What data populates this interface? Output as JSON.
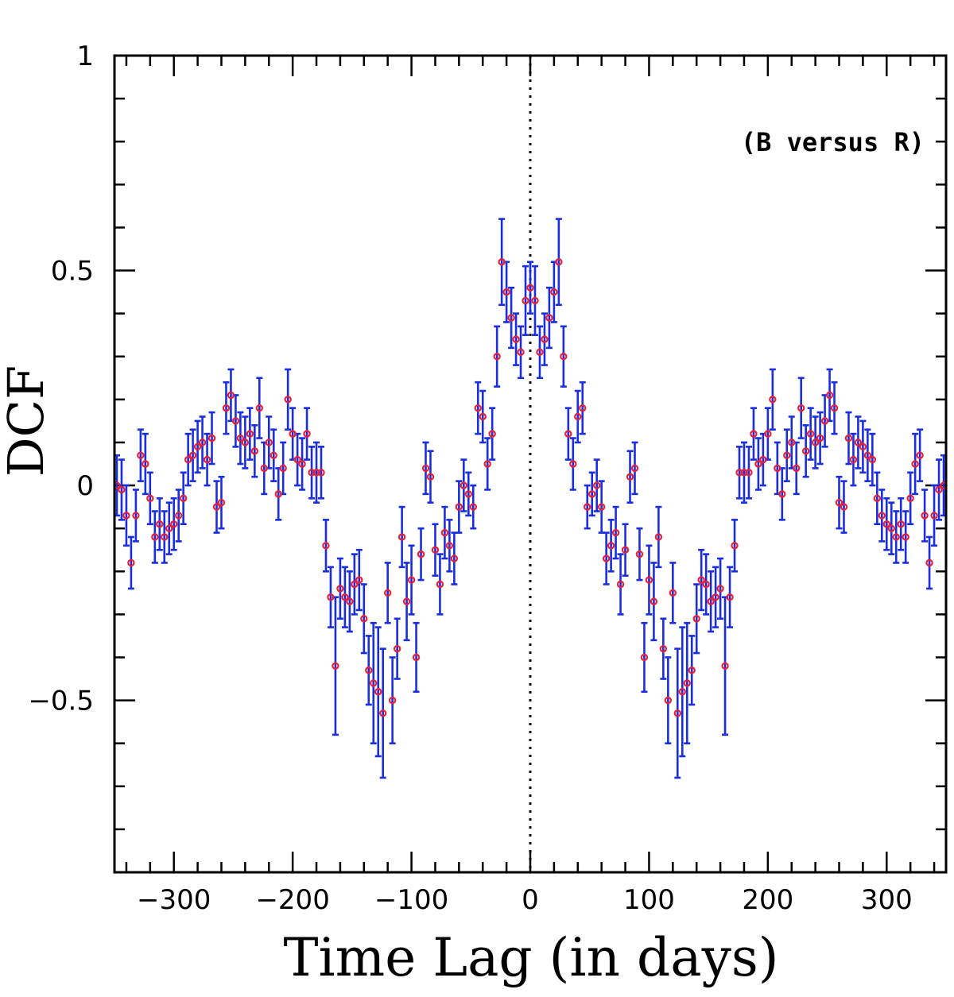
{
  "chart_data": {
    "type": "scatter",
    "xlabel": "Time Lag (in days)",
    "ylabel": "DCF",
    "annotation": "(B versus R)",
    "xlim": [
      -350,
      350
    ],
    "ylim": [
      -0.9,
      1.0
    ],
    "xticks": [
      -300,
      -200,
      -100,
      0,
      100,
      200,
      300
    ],
    "xtick_labels": [
      "−300",
      "−200",
      "−100",
      "0",
      "100",
      "200",
      "300"
    ],
    "yticks": [
      -0.5,
      0,
      0.5,
      1
    ],
    "ytick_labels": [
      "−0.5",
      "0",
      "0.5",
      "1"
    ],
    "reference_line_x": 0,
    "marker_color": "#e8203a",
    "errorbar_color": "#1a2ee0",
    "points": [
      [
        -348,
        0.0,
        0.07
      ],
      [
        -344,
        -0.01,
        0.07
      ],
      [
        -340,
        -0.07,
        0.07
      ],
      [
        -336,
        -0.18,
        0.06
      ],
      [
        -332,
        -0.07,
        0.06
      ],
      [
        -328,
        0.07,
        0.06
      ],
      [
        -324,
        0.05,
        0.07
      ],
      [
        -320,
        -0.03,
        0.06
      ],
      [
        -316,
        -0.12,
        0.06
      ],
      [
        -312,
        -0.09,
        0.06
      ],
      [
        -308,
        -0.12,
        0.06
      ],
      [
        -304,
        -0.1,
        0.06
      ],
      [
        -300,
        -0.09,
        0.06
      ],
      [
        -296,
        -0.07,
        0.06
      ],
      [
        -292,
        -0.03,
        0.06
      ],
      [
        -288,
        0.06,
        0.06
      ],
      [
        -284,
        0.07,
        0.06
      ],
      [
        -280,
        0.09,
        0.06
      ],
      [
        -276,
        0.1,
        0.06
      ],
      [
        -272,
        0.06,
        0.06
      ],
      [
        -268,
        0.11,
        0.06
      ],
      [
        -264,
        -0.05,
        0.06
      ],
      [
        -260,
        -0.04,
        0.06
      ],
      [
        -256,
        0.18,
        0.06
      ],
      [
        -252,
        0.21,
        0.06
      ],
      [
        -248,
        0.15,
        0.06
      ],
      [
        -244,
        0.11,
        0.06
      ],
      [
        -240,
        0.1,
        0.06
      ],
      [
        -236,
        0.12,
        0.06
      ],
      [
        -232,
        0.08,
        0.06
      ],
      [
        -228,
        0.18,
        0.07
      ],
      [
        -224,
        0.04,
        0.06
      ],
      [
        -220,
        0.1,
        0.06
      ],
      [
        -216,
        0.07,
        0.06
      ],
      [
        -212,
        -0.02,
        0.06
      ],
      [
        -208,
        0.04,
        0.06
      ],
      [
        -204,
        0.2,
        0.07
      ],
      [
        -200,
        0.12,
        0.06
      ],
      [
        -196,
        0.06,
        0.06
      ],
      [
        -192,
        0.05,
        0.06
      ],
      [
        -188,
        0.12,
        0.06
      ],
      [
        -184,
        0.03,
        0.06
      ],
      [
        -180,
        0.03,
        0.07
      ],
      [
        -176,
        0.03,
        0.06
      ],
      [
        -172,
        -0.14,
        0.06
      ],
      [
        -168,
        -0.26,
        0.07
      ],
      [
        -164,
        -0.42,
        0.16
      ],
      [
        -160,
        -0.24,
        0.07
      ],
      [
        -156,
        -0.26,
        0.07
      ],
      [
        -152,
        -0.27,
        0.07
      ],
      [
        -148,
        -0.23,
        0.07
      ],
      [
        -144,
        -0.22,
        0.07
      ],
      [
        -140,
        -0.31,
        0.08
      ],
      [
        -136,
        -0.43,
        0.08
      ],
      [
        -132,
        -0.46,
        0.14
      ],
      [
        -128,
        -0.48,
        0.15
      ],
      [
        -124,
        -0.53,
        0.15
      ],
      [
        -120,
        -0.25,
        0.07
      ],
      [
        -116,
        -0.5,
        0.1
      ],
      [
        -112,
        -0.38,
        0.07
      ],
      [
        -108,
        -0.12,
        0.07
      ],
      [
        -104,
        -0.27,
        0.09
      ],
      [
        -100,
        -0.22,
        0.08
      ],
      [
        -96,
        -0.4,
        0.08
      ],
      [
        -92,
        -0.16,
        0.06
      ],
      [
        -88,
        0.04,
        0.06
      ],
      [
        -84,
        0.02,
        0.06
      ],
      [
        -80,
        -0.15,
        0.06
      ],
      [
        -76,
        -0.23,
        0.07
      ],
      [
        -72,
        -0.11,
        0.06
      ],
      [
        -68,
        -0.14,
        0.06
      ],
      [
        -64,
        -0.17,
        0.06
      ],
      [
        -60,
        -0.05,
        0.06
      ],
      [
        -56,
        0.0,
        0.06
      ],
      [
        -52,
        -0.02,
        0.05
      ],
      [
        -48,
        -0.05,
        0.05
      ],
      [
        -44,
        0.18,
        0.06
      ],
      [
        -40,
        0.16,
        0.06
      ],
      [
        -36,
        0.05,
        0.06
      ],
      [
        -32,
        0.12,
        0.06
      ],
      [
        -28,
        0.3,
        0.07
      ],
      [
        -24,
        0.52,
        0.1
      ],
      [
        -20,
        0.45,
        0.07
      ],
      [
        -16,
        0.39,
        0.07
      ],
      [
        -12,
        0.34,
        0.06
      ],
      [
        -8,
        0.31,
        0.06
      ],
      [
        -4,
        0.43,
        0.08
      ],
      [
        0,
        0.46,
        0.06
      ]
    ]
  }
}
